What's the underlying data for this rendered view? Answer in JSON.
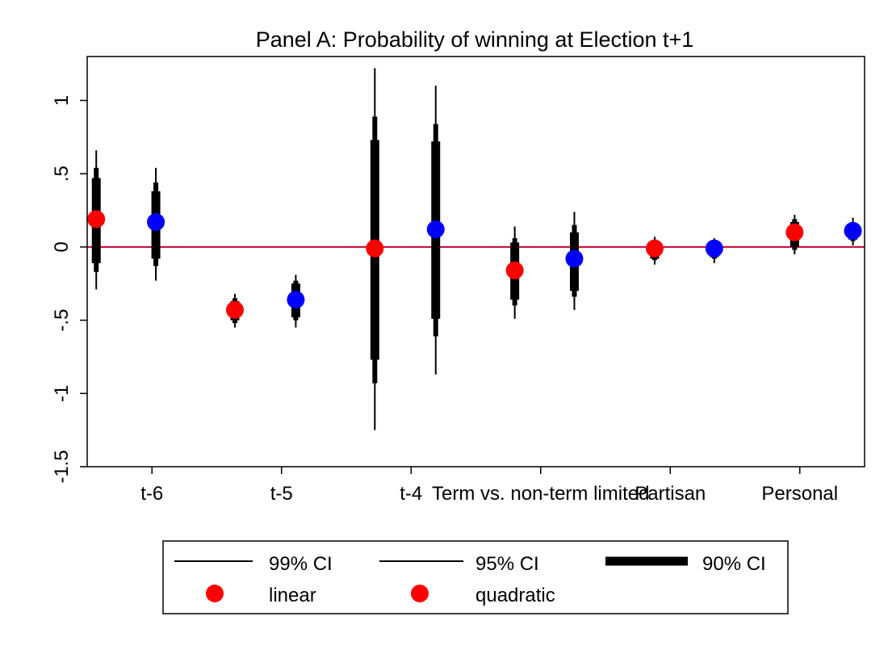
{
  "chart_data": {
    "type": "scatter",
    "title": "Panel A: Probability of winning at Election t+1",
    "xlabel": "",
    "ylabel": "",
    "ylim": [
      -1.5,
      1.3
    ],
    "yticks": [
      {
        "value": 1,
        "label": "1"
      },
      {
        "value": 0.5,
        "label": ".5"
      },
      {
        "value": 0,
        "label": "0"
      },
      {
        "value": -0.5,
        "label": "-.5"
      },
      {
        "value": -1,
        "label": "-1"
      },
      {
        "value": -1.5,
        "label": "-1.5"
      }
    ],
    "xlim": [
      0.5,
      6.5
    ],
    "xticks": [
      {
        "value": 1,
        "label": "t-6"
      },
      {
        "value": 2,
        "label": "t-5"
      },
      {
        "value": 3,
        "label": "t-4"
      },
      {
        "value": 4,
        "label": "Term vs. non-term limited"
      },
      {
        "value": 5,
        "label": "Partisan"
      },
      {
        "value": 6,
        "label": "Personal"
      }
    ],
    "reference_line": {
      "y": 0,
      "color": "#cc0033"
    },
    "grid": false,
    "legend_position": "bottom",
    "legend": {
      "ci99": "99% CI",
      "ci95": "95% CI",
      "ci90": "90% CI",
      "linear": "linear",
      "quadratic": "quadratic"
    },
    "series": [
      {
        "name": "linear",
        "color": "#ff0000",
        "points": [
          {
            "x": 0.57,
            "y": 0.19,
            "ci99": [
              -0.29,
              0.66
            ],
            "ci95": [
              -0.17,
              0.54
            ],
            "ci90": [
              -0.11,
              0.47
            ]
          },
          {
            "x": 1.64,
            "y": -0.43,
            "ci99": [
              -0.55,
              -0.32
            ],
            "ci95": [
              -0.52,
              -0.35
            ],
            "ci90": [
              -0.5,
              -0.37
            ]
          },
          {
            "x": 2.72,
            "y": -0.01,
            "ci99": [
              -1.25,
              1.22
            ],
            "ci95": [
              -0.93,
              0.89
            ],
            "ci90": [
              -0.77,
              0.73
            ]
          },
          {
            "x": 3.8,
            "y": -0.16,
            "ci99": [
              -0.49,
              0.14
            ],
            "ci95": [
              -0.4,
              0.06
            ],
            "ci90": [
              -0.36,
              0.03
            ]
          },
          {
            "x": 4.88,
            "y": -0.01,
            "ci99": [
              -0.12,
              0.07
            ],
            "ci95": [
              -0.09,
              0.05
            ],
            "ci90": [
              -0.08,
              0.04
            ]
          },
          {
            "x": 5.96,
            "y": 0.1,
            "ci99": [
              -0.05,
              0.22
            ],
            "ci95": [
              -0.02,
              0.19
            ],
            "ci90": [
              0.0,
              0.17
            ]
          }
        ]
      },
      {
        "name": "quadratic",
        "color": "#0000ff",
        "points": [
          {
            "x": 1.03,
            "y": 0.17,
            "ci99": [
              -0.23,
              0.54
            ],
            "ci95": [
              -0.13,
              0.44
            ],
            "ci90": [
              -0.08,
              0.38
            ]
          },
          {
            "x": 2.11,
            "y": -0.36,
            "ci99": [
              -0.55,
              -0.19
            ],
            "ci95": [
              -0.5,
              -0.23
            ],
            "ci90": [
              -0.48,
              -0.25
            ]
          },
          {
            "x": 3.19,
            "y": 0.12,
            "ci99": [
              -0.87,
              1.1
            ],
            "ci95": [
              -0.61,
              0.84
            ],
            "ci90": [
              -0.49,
              0.72
            ]
          },
          {
            "x": 4.26,
            "y": -0.08,
            "ci99": [
              -0.43,
              0.24
            ],
            "ci95": [
              -0.34,
              0.15
            ],
            "ci90": [
              -0.3,
              0.1
            ]
          },
          {
            "x": 5.34,
            "y": -0.01,
            "ci99": [
              -0.11,
              0.06
            ],
            "ci95": [
              -0.08,
              0.04
            ],
            "ci90": [
              -0.07,
              0.03
            ]
          },
          {
            "x": 6.41,
            "y": 0.11,
            "ci99": [
              0.01,
              0.2
            ],
            "ci95": [
              0.04,
              0.17
            ],
            "ci90": [
              0.05,
              0.16
            ]
          }
        ]
      }
    ]
  }
}
